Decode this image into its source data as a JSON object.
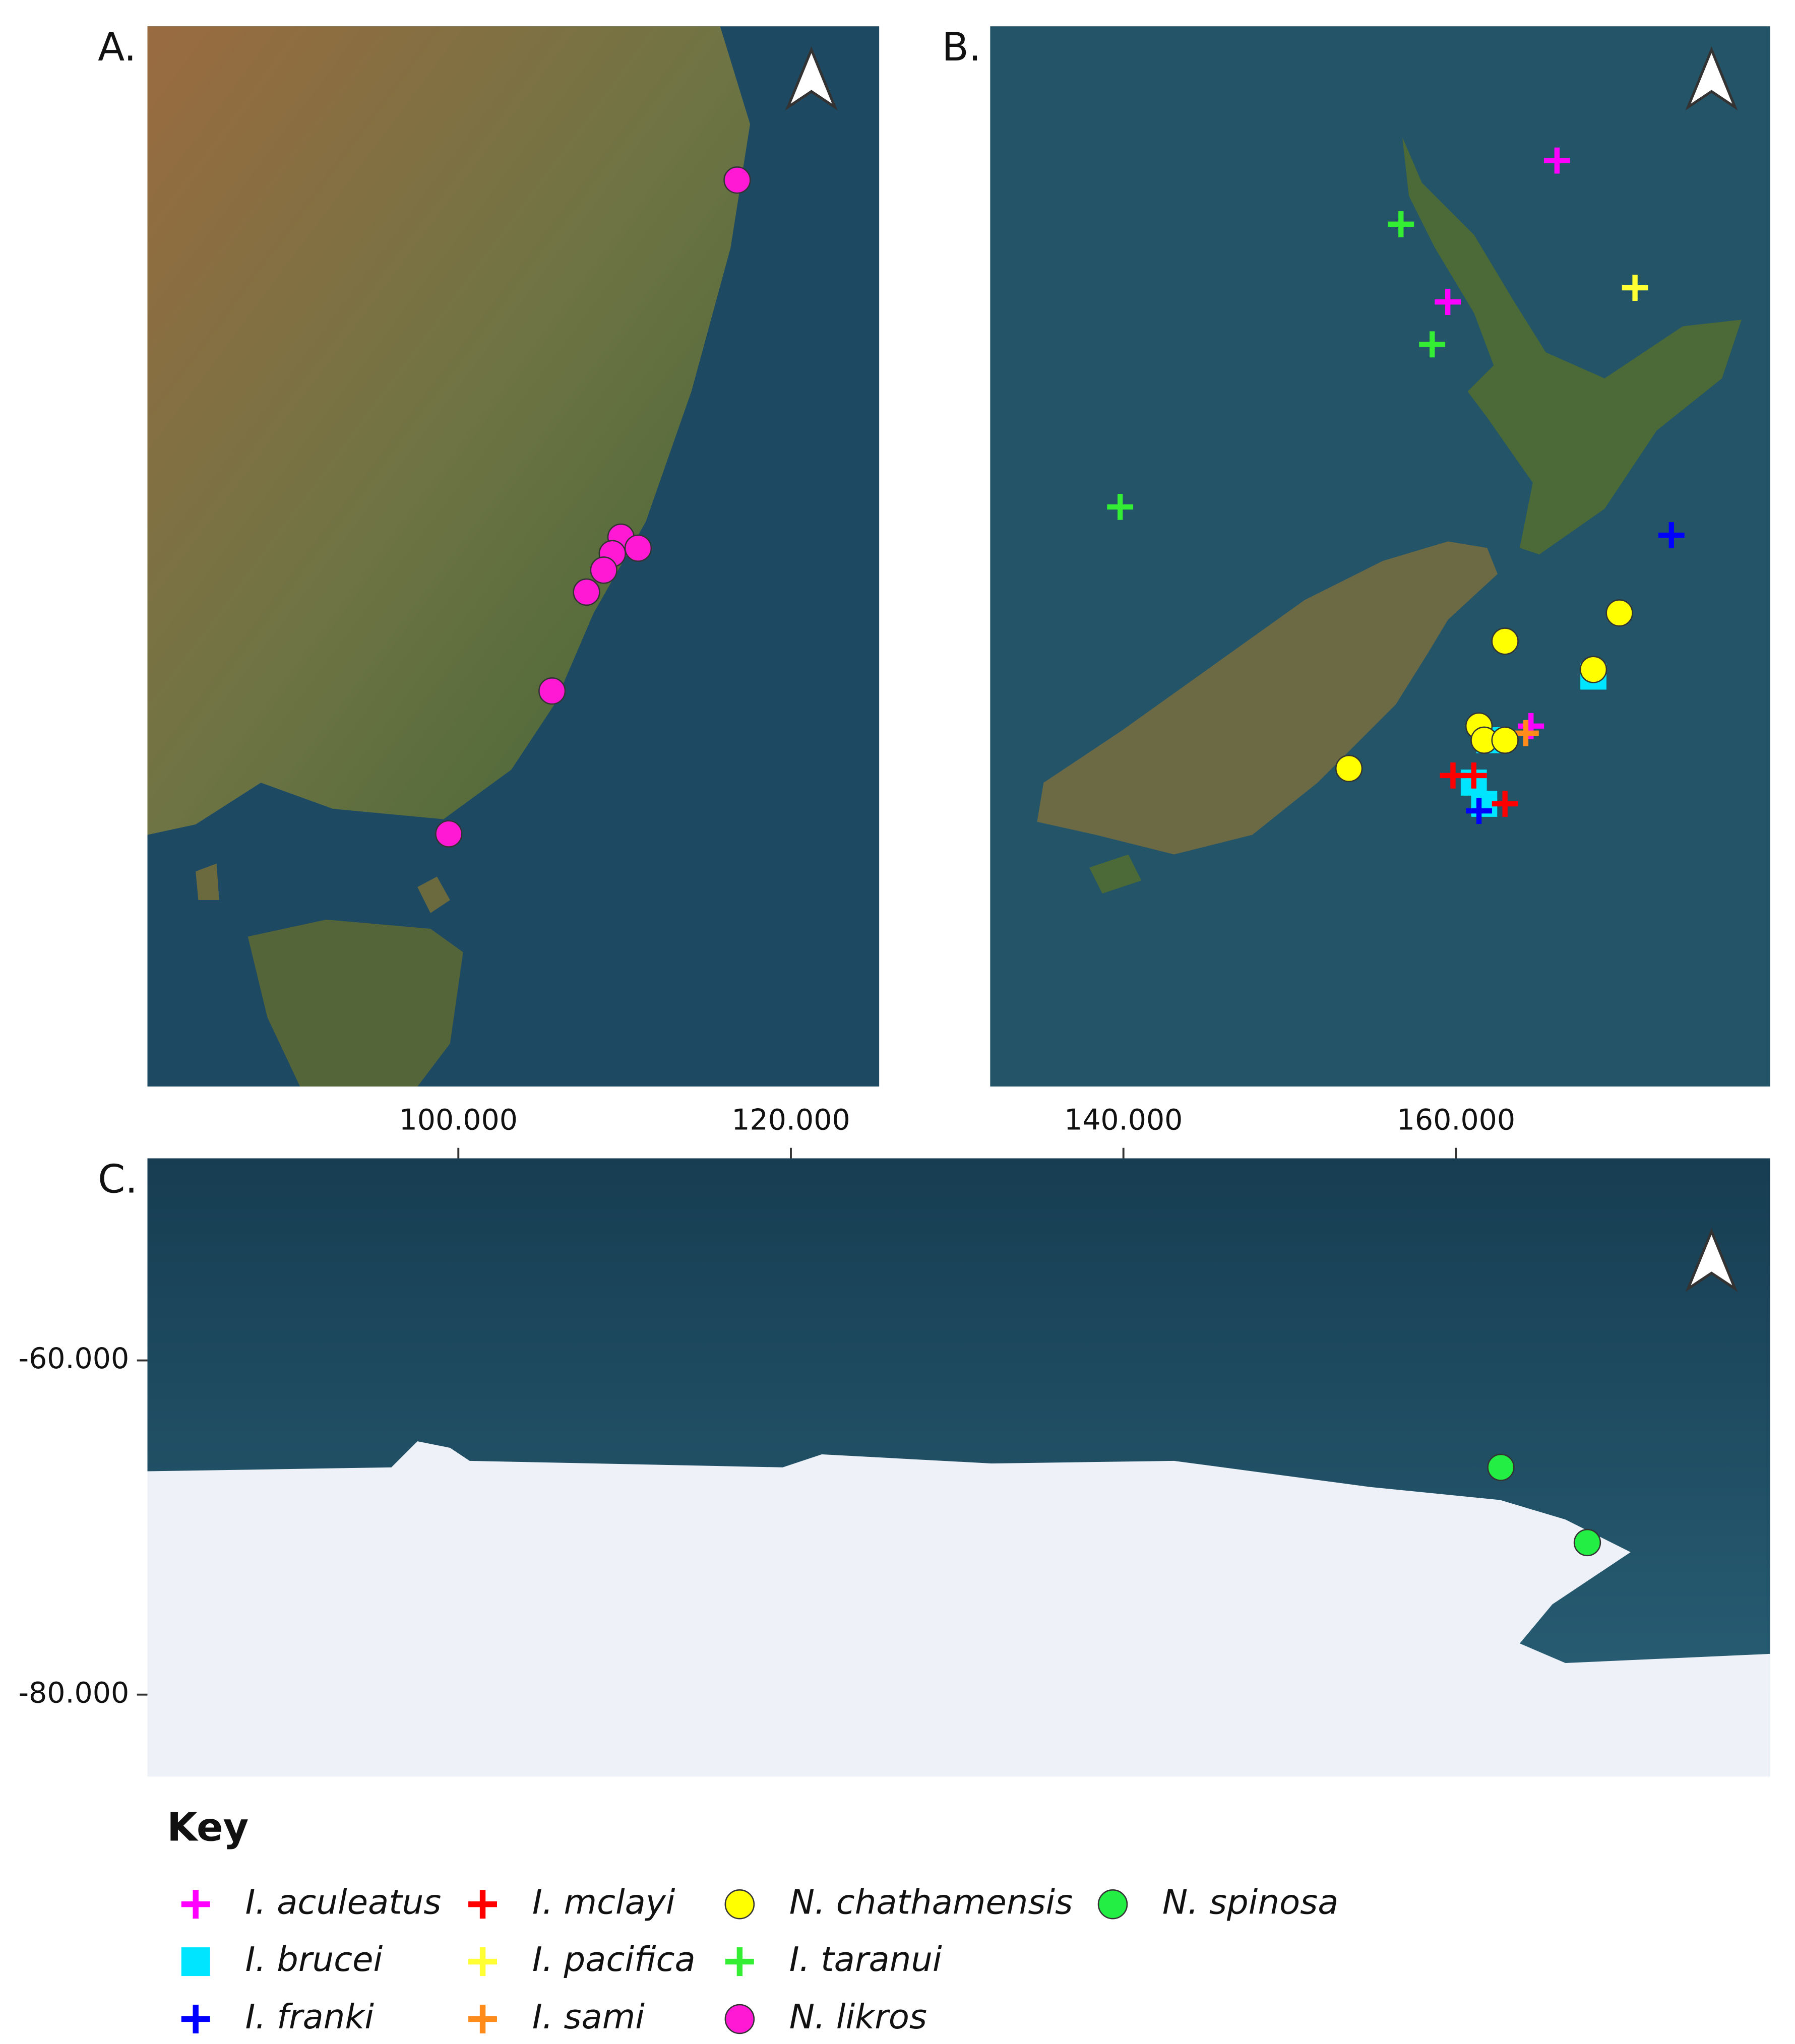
{
  "chart_data": {
    "type": "map",
    "panels": [
      {
        "label": "A.",
        "lonlim": [
          140.5,
          157.5
        ],
        "latlim": [
          -24.9,
          -44.2
        ]
      },
      {
        "label": "B.",
        "lonlim": [
          165.5,
          180.5
        ],
        "latlim": [
          -33.5,
          -48.5
        ]
      },
      {
        "label": "C.",
        "lonlim": [
          81.3,
          178.9
        ],
        "latlim": [
          -47.9,
          -84.9
        ],
        "xticks": [
          {
            "value": 100,
            "label": "100.000"
          },
          {
            "value": 120,
            "label": "120.000"
          },
          {
            "value": 140,
            "label": "140.000"
          },
          {
            "value": 160,
            "label": "160.000"
          }
        ],
        "yticks": [
          {
            "value": -60,
            "label": "-60.000"
          },
          {
            "value": -80,
            "label": "-80.000"
          }
        ]
      }
    ],
    "legend_title": "Key",
    "series": [
      {
        "name": "I. aculeatus",
        "color": "#ff00ff",
        "marker": "plus",
        "lon": [
          176.4,
          174.3,
          175.9
        ],
        "lat": [
          -35.4,
          -37.4,
          -43.4
        ]
      },
      {
        "name": "I. brucei",
        "color": "#00e5ff",
        "marker": "square",
        "lon": [
          177.1,
          175.1,
          174.8,
          175.0
        ],
        "lat": [
          -42.7,
          -43.6,
          -44.2,
          -44.5
        ]
      },
      {
        "name": "I. franki",
        "color": "#0000ff",
        "marker": "plus",
        "lon": [
          178.6,
          174.9
        ],
        "lat": [
          -40.7,
          -44.6
        ]
      },
      {
        "name": "I. mclayi",
        "color": "#ff0000",
        "marker": "plus",
        "lon": [
          174.4,
          174.8,
          175.4
        ],
        "lat": [
          -44.1,
          -44.1,
          -44.5
        ]
      },
      {
        "name": "I. pacifica",
        "color": "#ffff33",
        "marker": "plus",
        "lon": [
          177.9
        ],
        "lat": [
          -37.2
        ]
      },
      {
        "name": "I. sami",
        "color": "#ff8c1a",
        "marker": "plus",
        "lon": [
          175.8
        ],
        "lat": [
          -43.5
        ]
      },
      {
        "name": "N. chathamensis",
        "color": "#ffff00",
        "marker": "circle",
        "lon": [
          177.6,
          175.4,
          177.1,
          174.9,
          175.0,
          175.4,
          172.4
        ],
        "lat": [
          -41.8,
          -42.2,
          -42.6,
          -43.4,
          -43.6,
          -43.6,
          -44.0
        ]
      },
      {
        "name": "I. taranui",
        "color": "#33ee33",
        "marker": "plus",
        "lon": [
          173.4,
          174.0,
          168.0
        ],
        "lat": [
          -36.3,
          -38.0,
          -40.3
        ]
      },
      {
        "name": "N. likros",
        "color": "#ff19d5",
        "marker": "circle",
        "lon": [
          154.2,
          151.5,
          151.3,
          151.9,
          151.1,
          150.7,
          149.9,
          147.5
        ],
        "lat": [
          -27.7,
          -34.2,
          -34.5,
          -34.4,
          -34.8,
          -35.2,
          -37.0,
          -39.6
        ]
      },
      {
        "name": "N. spinosa",
        "color": "#22ee44",
        "marker": "circle",
        "lon": [
          162.7,
          167.9
        ],
        "lat": [
          -66.4,
          -70.9
        ]
      }
    ]
  }
}
